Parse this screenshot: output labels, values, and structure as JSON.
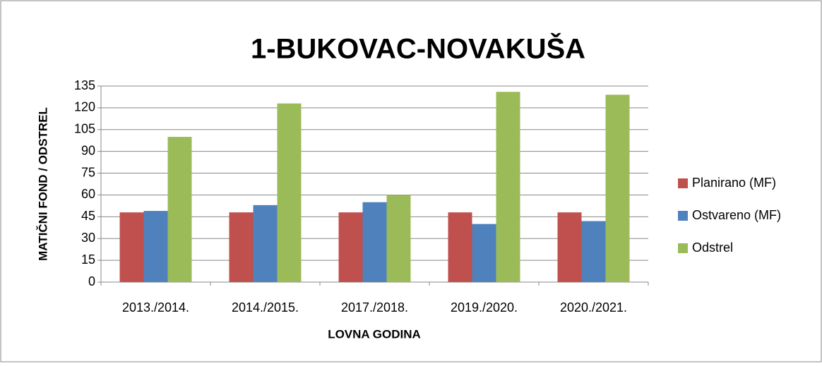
{
  "chart_data": {
    "type": "bar",
    "title": "1-BUKOVAC-NOVAKUŠA",
    "x_label": "LOVNA GODINA",
    "y_label": "MATIČNI FOND / ODSTREL",
    "categories": [
      "2013./2014.",
      "2014./2015.",
      "2017./2018.",
      "2019./2020.",
      "2020./2021."
    ],
    "series": [
      {
        "name": "Planirano (MF)",
        "color": "#c0504d",
        "values": [
          48,
          48,
          48,
          48,
          48
        ]
      },
      {
        "name": "Ostvareno (MF)",
        "color": "#4f81bd",
        "values": [
          49,
          53,
          55,
          40,
          42
        ]
      },
      {
        "name": "Odstrel",
        "color": "#9bbb59",
        "values": [
          100,
          123,
          60,
          131,
          129
        ]
      }
    ],
    "ylim": [
      0,
      135
    ],
    "yticks": [
      0,
      15,
      30,
      45,
      60,
      75,
      90,
      105,
      120,
      135
    ],
    "grid": true,
    "legend": "right"
  }
}
